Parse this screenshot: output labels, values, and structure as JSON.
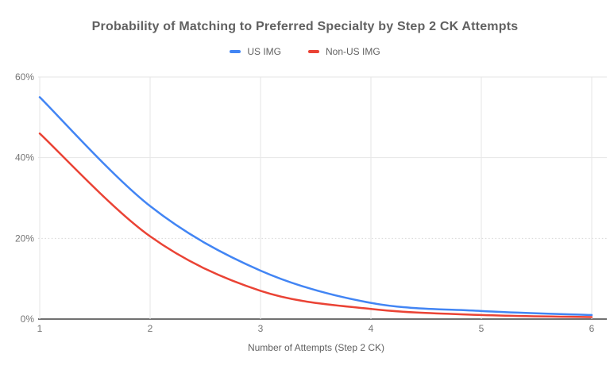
{
  "chart_data": {
    "type": "line",
    "title": "Probability of Matching to Preferred Specialty by Step 2 CK Attempts",
    "xlabel": "Number of Attempts (Step 2 CK)",
    "ylabel": "",
    "x": [
      1,
      2,
      3,
      4,
      5,
      6
    ],
    "x_tick_labels": [
      "1",
      "2",
      "3",
      "4",
      "5",
      "6"
    ],
    "y_tick_values": [
      0,
      20,
      40,
      60
    ],
    "y_tick_labels": [
      "0%",
      "20%",
      "40%",
      "60%"
    ],
    "xlim": [
      1,
      6
    ],
    "ylim": [
      0,
      60
    ],
    "smooth": true,
    "grid": true,
    "legend_position": "top",
    "gridline_styles": {
      "baseline_at": 0,
      "dotted_at": [
        20
      ],
      "solid_at": [
        40,
        60
      ]
    },
    "series": [
      {
        "name": "US IMG",
        "color": "#4285f4",
        "values": [
          55,
          28,
          12,
          4,
          2,
          1
        ]
      },
      {
        "name": "Non-US IMG",
        "color": "#ea4335",
        "values": [
          46,
          20.5,
          7,
          2.5,
          1,
          0.5
        ]
      }
    ]
  },
  "colors": {
    "background": "#ffffff",
    "title": "#616161",
    "axis_title": "#616161",
    "tick_label": "#757575",
    "gridline": "#e6e6e6",
    "dotted_gridline": "#d8d8d8",
    "baseline": "#424242"
  }
}
